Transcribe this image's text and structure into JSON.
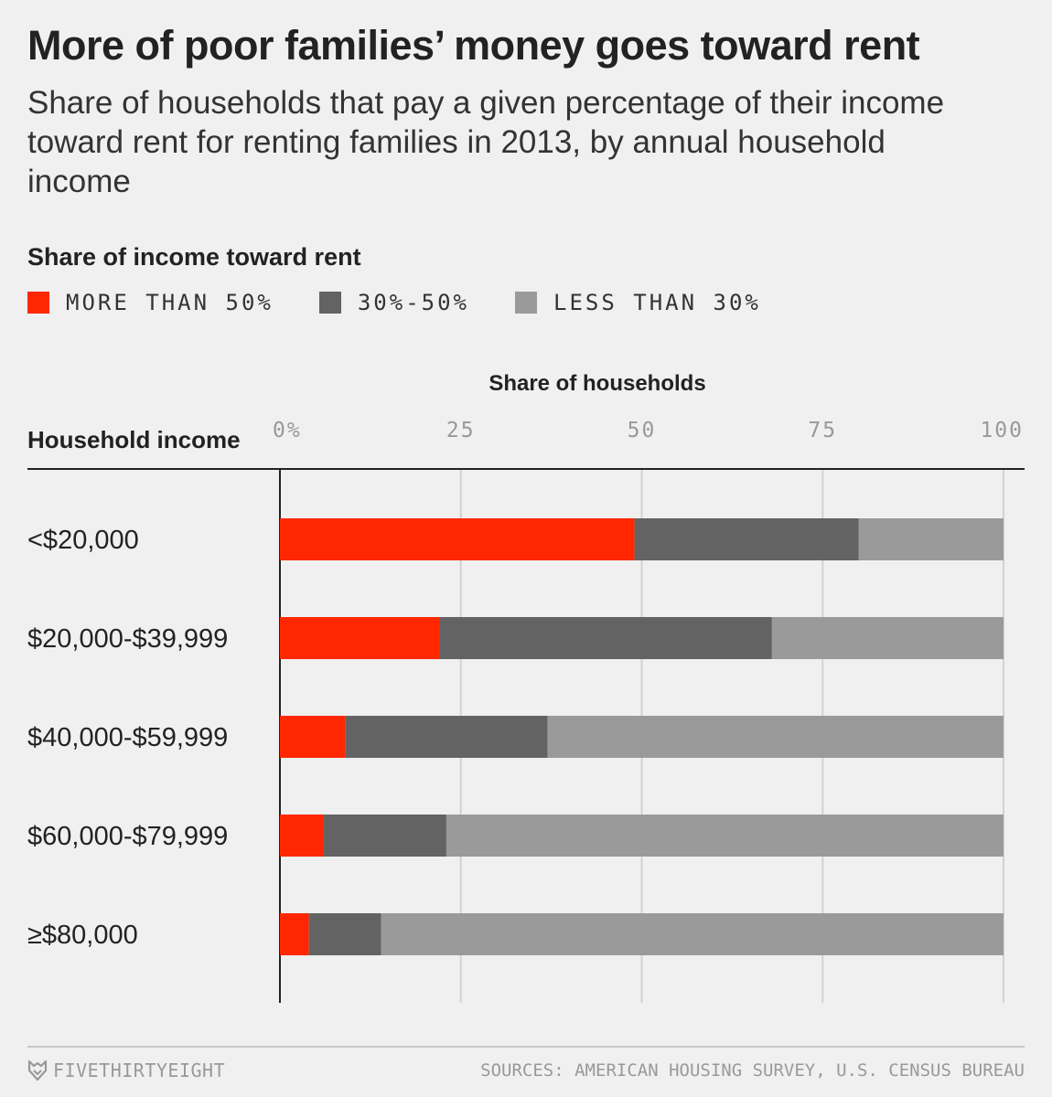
{
  "title": "More of poor families’ money goes toward rent",
  "subtitle": "Share of households that pay a given percentage of their income toward rent for renting families in 2013, by annual household income",
  "legend": {
    "title": "Share of income toward rent",
    "items": [
      {
        "label": "MORE THAN 50%",
        "color": "#ff2700"
      },
      {
        "label": "30%-50%",
        "color": "#636363"
      },
      {
        "label": "LESS THAN 30%",
        "color": "#9a9a9a"
      }
    ]
  },
  "chart_data": {
    "type": "bar",
    "orientation": "horizontal",
    "stacked": true,
    "title": "Share of households",
    "xlabel": "Share of households",
    "ylabel": "Household income",
    "xlim": [
      0,
      100
    ],
    "xticks": [
      0,
      25,
      50,
      75,
      100
    ],
    "xtick_labels": [
      "0%",
      "25",
      "50",
      "75",
      "100"
    ],
    "grid": true,
    "categories": [
      "<$20,000",
      "$20,000-$39,999",
      "$40,000-$59,999",
      "$60,000-$79,999",
      "≥$80,000"
    ],
    "series": [
      {
        "name": "MORE THAN 50%",
        "color": "#ff2700",
        "values": [
          49,
          22,
          9,
          6,
          4
        ]
      },
      {
        "name": "30%-50%",
        "color": "#636363",
        "values": [
          31,
          46,
          28,
          17,
          10
        ]
      },
      {
        "name": "LESS THAN 30%",
        "color": "#9a9a9a",
        "values": [
          20,
          32,
          63,
          77,
          86
        ]
      }
    ]
  },
  "footer": {
    "brand": "FIVETHIRTYEIGHT",
    "source": "SOURCES: AMERICAN HOUSING SURVEY, U.S. CENSUS BUREAU"
  }
}
